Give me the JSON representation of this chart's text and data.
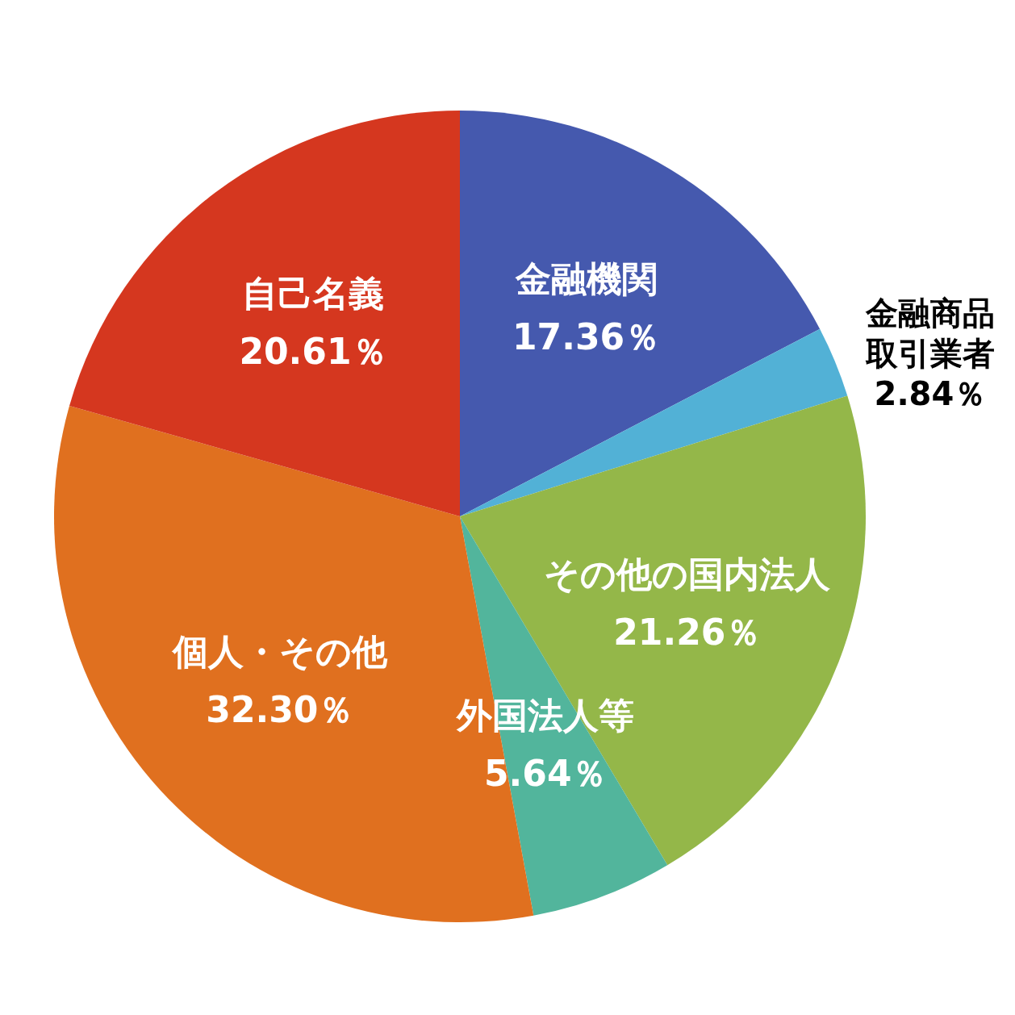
{
  "chart_data": {
    "type": "pie",
    "categories": [
      "金融機関",
      "金融商品取引業者",
      "その他の国内法人",
      "外国法人等",
      "個人・その他",
      "自己名義"
    ],
    "values": [
      17.36,
      2.84,
      21.26,
      5.64,
      32.3,
      20.61
    ],
    "value_labels": [
      "17.36％",
      "2.84％",
      "21.26％",
      "5.64％",
      "32.30％",
      "20.61％"
    ],
    "colors": [
      "#4559ae",
      "#52b1d6",
      "#94b749",
      "#52b59c",
      "#e0701f",
      "#d5371f"
    ]
  }
}
